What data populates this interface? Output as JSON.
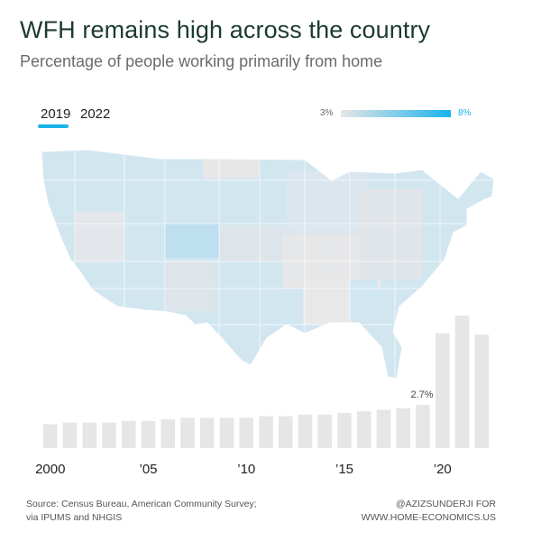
{
  "title": "WFH remains high across the country",
  "subtitle": "Percentage of people working primarily from home",
  "tabs": [
    {
      "label": "2019",
      "selected": true
    },
    {
      "label": "2022",
      "selected": false
    }
  ],
  "legend": {
    "min_label": "3%",
    "max_label": "8%",
    "min_color": "#e6e6e6",
    "max_color": "#1ab4ec"
  },
  "colors": {
    "accent": "#1ab4ec",
    "bar": "#e6e6e6",
    "title": "#1c3a34",
    "map_light": "#e9eaea",
    "map_blue": "#d2e6f0"
  },
  "chart_data": {
    "type": "bar",
    "categories": [
      2000,
      2001,
      2002,
      2003,
      2004,
      2005,
      2006,
      2007,
      2008,
      2009,
      2010,
      2011,
      2012,
      2013,
      2014,
      2015,
      2016,
      2017,
      2018,
      2019,
      2020,
      2021,
      2022
    ],
    "values": [
      1.5,
      1.6,
      1.6,
      1.6,
      1.7,
      1.7,
      1.8,
      1.9,
      1.9,
      1.9,
      1.9,
      2.0,
      2.0,
      2.1,
      2.1,
      2.2,
      2.3,
      2.4,
      2.5,
      2.7,
      7.2,
      8.3,
      7.1
    ],
    "tick_labels": [
      {
        "x": 2000,
        "label": "2000"
      },
      {
        "x": 2005,
        "label": "’05"
      },
      {
        "x": 2010,
        "label": "’10"
      },
      {
        "x": 2015,
        "label": "’15"
      },
      {
        "x": 2020,
        "label": "’20"
      }
    ],
    "annotation": {
      "x": 2019,
      "label": "2.7%"
    },
    "ylim": [
      0,
      8.3
    ]
  },
  "footer": {
    "source": "Source: Census Bureau, American Community Survey;\nvia IPUMS and NHGIS",
    "credit": "@AZIZSUNDERJI FOR\nWWW.HOME-ECONOMICS.US"
  }
}
